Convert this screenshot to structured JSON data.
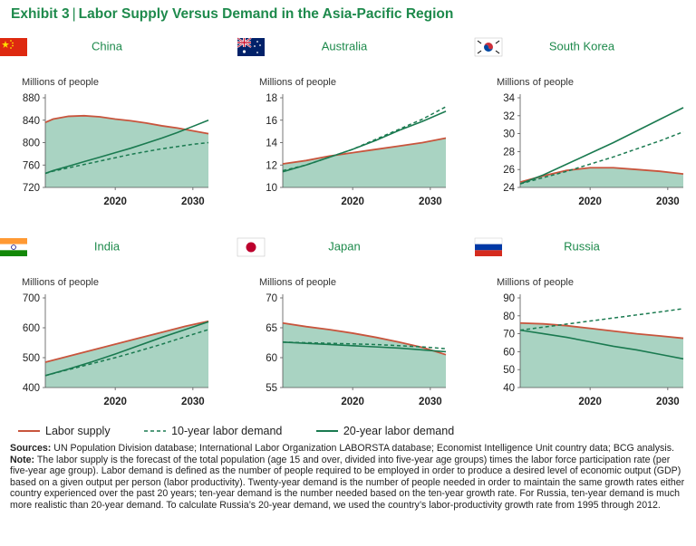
{
  "header": {
    "exhibit": "Exhibit 3",
    "separator": "|",
    "title": "Labor Supply Versus Demand in the Asia-Pacific Region"
  },
  "colors": {
    "supply": "#c8553d",
    "demand": "#1a7a50",
    "fill": "#a9d3c2",
    "accent": "#1e8a4c"
  },
  "chart_data": [
    {
      "type": "line",
      "title": "China",
      "flag": "china-flag",
      "ylabel": "Millions of people",
      "ylim": [
        720,
        880
      ],
      "yticks": [
        720,
        760,
        800,
        840,
        880
      ],
      "xlim": [
        2011,
        2032
      ],
      "xticks": [
        2020,
        2030
      ],
      "x": [
        2011,
        2012,
        2014,
        2016,
        2018,
        2020,
        2022,
        2024,
        2026,
        2028,
        2030,
        2032
      ],
      "series": [
        {
          "name": "Labor supply",
          "values": [
            836,
            842,
            847,
            848,
            846,
            842,
            839,
            835,
            830,
            826,
            821,
            816
          ]
        },
        {
          "name": "10-year labor demand",
          "values": [
            745,
            749,
            755,
            761,
            767,
            773,
            779,
            784,
            789,
            793,
            797,
            800
          ]
        },
        {
          "name": "20-year labor demand",
          "values": [
            745,
            750,
            758,
            766,
            774,
            782,
            790,
            799,
            808,
            818,
            829,
            840
          ]
        }
      ]
    },
    {
      "type": "line",
      "title": "Australia",
      "flag": "australia-flag",
      "ylabel": "Millions of people",
      "ylim": [
        10,
        18
      ],
      "yticks": [
        10,
        12,
        14,
        16,
        18
      ],
      "xlim": [
        2011,
        2032
      ],
      "xticks": [
        2020,
        2030
      ],
      "x": [
        2011,
        2014,
        2017,
        2020,
        2023,
        2026,
        2029,
        2032
      ],
      "series": [
        {
          "name": "Labor supply",
          "values": [
            12.1,
            12.4,
            12.8,
            13.1,
            13.4,
            13.7,
            14.0,
            14.4
          ]
        },
        {
          "name": "10-year labor demand",
          "values": [
            11.5,
            12.0,
            12.7,
            13.4,
            14.3,
            15.2,
            16.1,
            17.2
          ]
        },
        {
          "name": "20-year labor demand",
          "values": [
            11.4,
            12.0,
            12.7,
            13.4,
            14.2,
            15.1,
            15.9,
            16.8
          ]
        }
      ]
    },
    {
      "type": "line",
      "title": "South Korea",
      "flag": "south-korea-flag",
      "ylabel": "Millions of people",
      "ylim": [
        24,
        34
      ],
      "yticks": [
        24,
        26,
        28,
        30,
        32,
        34
      ],
      "xlim": [
        2011,
        2032
      ],
      "xticks": [
        2020,
        2030
      ],
      "x": [
        2011,
        2014,
        2017,
        2020,
        2023,
        2026,
        2029,
        2032
      ],
      "series": [
        {
          "name": "Labor supply",
          "values": [
            24.6,
            25.3,
            25.9,
            26.2,
            26.2,
            26.0,
            25.8,
            25.5
          ]
        },
        {
          "name": "10-year labor demand",
          "values": [
            24.4,
            25.1,
            25.8,
            26.6,
            27.4,
            28.3,
            29.2,
            30.2
          ]
        },
        {
          "name": "20-year labor demand",
          "values": [
            24.4,
            25.4,
            26.6,
            27.8,
            29.0,
            30.3,
            31.6,
            32.9
          ]
        }
      ]
    },
    {
      "type": "line",
      "title": "India",
      "flag": "india-flag",
      "ylabel": "Millions of people",
      "ylim": [
        400,
        700
      ],
      "yticks": [
        400,
        500,
        600,
        700
      ],
      "xlim": [
        2011,
        2032
      ],
      "xticks": [
        2020,
        2030
      ],
      "x": [
        2011,
        2014,
        2017,
        2020,
        2023,
        2026,
        2029,
        2032
      ],
      "series": [
        {
          "name": "Labor supply",
          "values": [
            485,
            505,
            525,
            545,
            565,
            585,
            605,
            622
          ]
        },
        {
          "name": "10-year labor demand",
          "values": [
            440,
            460,
            480,
            500,
            522,
            545,
            570,
            594
          ]
        },
        {
          "name": "20-year labor demand",
          "values": [
            440,
            462,
            486,
            512,
            540,
            568,
            594,
            620
          ]
        }
      ]
    },
    {
      "type": "line",
      "title": "Japan",
      "flag": "japan-flag",
      "ylabel": "Millions of people",
      "ylim": [
        55,
        70
      ],
      "yticks": [
        55,
        60,
        65,
        70
      ],
      "xlim": [
        2011,
        2032
      ],
      "xticks": [
        2020,
        2030
      ],
      "x": [
        2011,
        2014,
        2017,
        2020,
        2023,
        2026,
        2029,
        2032
      ],
      "series": [
        {
          "name": "Labor supply",
          "values": [
            65.8,
            65.2,
            64.7,
            64.1,
            63.4,
            62.6,
            61.7,
            60.5
          ]
        },
        {
          "name": "10-year labor demand",
          "values": [
            62.6,
            62.5,
            62.4,
            62.3,
            62.2,
            62.0,
            61.8,
            61.5
          ]
        },
        {
          "name": "20-year labor demand",
          "values": [
            62.6,
            62.4,
            62.2,
            62.0,
            61.8,
            61.6,
            61.3,
            61.0
          ]
        }
      ]
    },
    {
      "type": "line",
      "title": "Russia",
      "flag": "russia-flag",
      "ylabel": "Millions of people",
      "ylim": [
        40,
        90
      ],
      "yticks": [
        40,
        50,
        60,
        70,
        80,
        90
      ],
      "xlim": [
        2011,
        2032
      ],
      "xticks": [
        2020,
        2030
      ],
      "x": [
        2011,
        2014,
        2017,
        2020,
        2023,
        2026,
        2029,
        2032
      ],
      "series": [
        {
          "name": "Labor supply",
          "values": [
            76,
            75.5,
            74.5,
            73,
            71.5,
            70,
            68.8,
            67.5
          ]
        },
        {
          "name": "10-year labor demand",
          "values": [
            72,
            73.7,
            75.4,
            77.1,
            78.8,
            80.5,
            82.2,
            84
          ]
        },
        {
          "name": "20-year labor demand",
          "values": [
            72,
            70,
            68,
            65.5,
            63,
            61,
            58.5,
            56
          ]
        }
      ]
    }
  ],
  "legend": {
    "supply": "Labor supply",
    "ten": "10-year labor demand",
    "twenty": "20-year labor demand"
  },
  "notes": {
    "sources_label": "Sources:",
    "sources_text": " UN Population Division database; International Labor Organization LABORSTA database; Economist Intelligence Unit country data; BCG analysis.",
    "note_label": "Note:",
    "note_text": " The labor supply is the forecast of the total population (age 15 and over, divided into five-year age groups) times the labor force participation rate (per five-year age group). Labor demand is defined as the number of people required to be employed in order to produce a desired level of economic output (GDP) based on a given output per person (labor productivity). Twenty-year demand is the number of people needed in order to maintain the same growth rates either country experienced over the past 20 years; ten-year demand is the number needed based on the ten-year growth rate. For Russia, ten-year demand is much more realistic than 20-year demand. To calculate Russia’s 20-year demand, we used the country’s labor-productivity growth rate from 1995 through 2012."
  }
}
